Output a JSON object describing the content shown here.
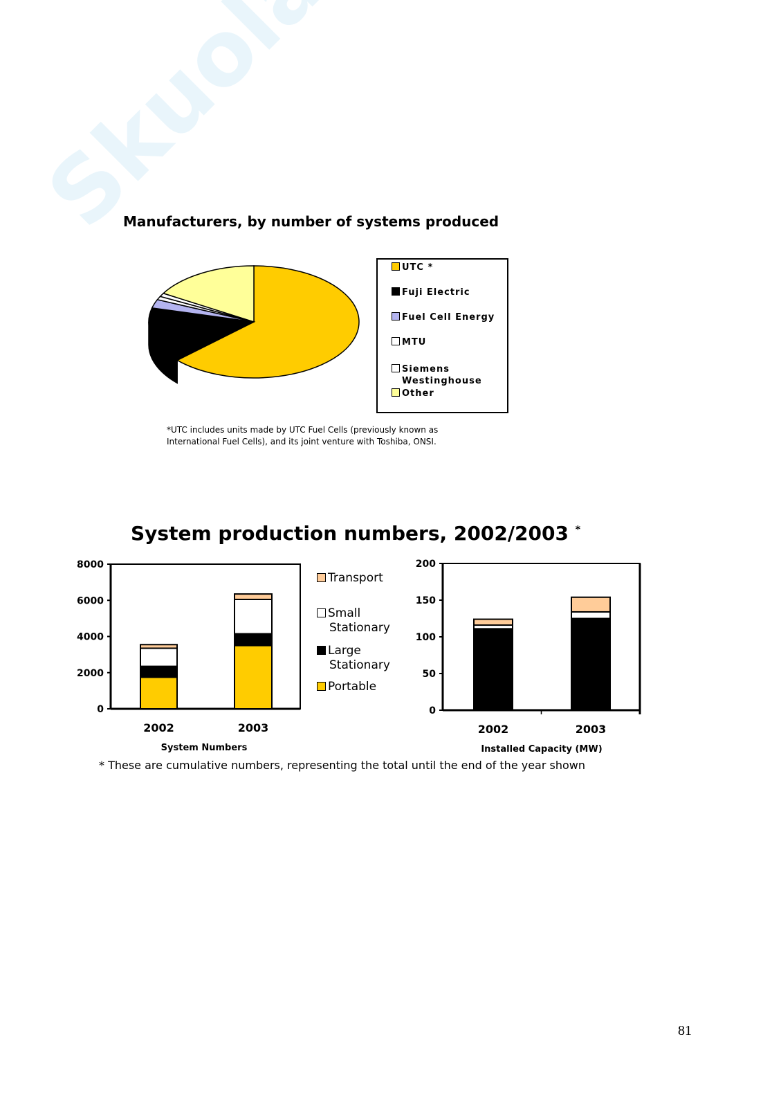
{
  "watermark": "Skuola.net — il paradiso dello studente",
  "colors": {
    "utc": "#FFCC00",
    "utc_side": "#806600",
    "fuji": "#000000",
    "fce": "#B4B4F0",
    "mtu": "#FFFFFF",
    "siemens": "#FFFFFF",
    "other": "#FFFF99",
    "portable": "#FFCC00",
    "large": "#000000",
    "small": "#FFFFFF",
    "transport": "#FFCC99"
  },
  "chart_data": [
    {
      "type": "pie",
      "title": "Manufacturers, by number of systems produced",
      "style": "3d",
      "legend_position": "right",
      "slices": [
        {
          "label": "UTC *",
          "value": 63,
          "color": "#FFCC00"
        },
        {
          "label": "Fuji Electric",
          "value": 16,
          "color": "#000000"
        },
        {
          "label": "Fuel Cell Energy",
          "value": 2.5,
          "color": "#B4B4F0"
        },
        {
          "label": "MTU",
          "value": 1,
          "color": "#FFFFFF"
        },
        {
          "label": "Siemens Westinghouse",
          "value": 1,
          "color": "#FFFFFF"
        },
        {
          "label": "Other",
          "value": 16.5,
          "color": "#FFFF99"
        }
      ],
      "footnote": [
        "*UTC includes units made by UTC Fuel Cells (previously known as",
        "International Fuel Cells), and its joint venture with Toshiba, ONSI."
      ]
    },
    {
      "type": "bar",
      "stacked": true,
      "title": "System production numbers, 2002/2003",
      "title_mark": "*",
      "xlabel": "System Numbers",
      "categories": [
        "2002",
        "2003"
      ],
      "ylim": [
        0,
        8000
      ],
      "yticks": [
        "0",
        "2000",
        "4000",
        "6000",
        "8000"
      ],
      "series": [
        {
          "name": "Portable",
          "values": [
            1750,
            3500
          ],
          "color": "#FFCC00"
        },
        {
          "name": "Large Stationary",
          "values": [
            600,
            650
          ],
          "color": "#000000"
        },
        {
          "name": "Small Stationary",
          "values": [
            1000,
            1900
          ],
          "color": "#FFFFFF"
        },
        {
          "name": "Transport",
          "values": [
            200,
            300
          ],
          "color": "#FFCC99"
        }
      ],
      "legend": [
        "Transport",
        "Small Stationary",
        "Large Stationary",
        "Portable"
      ]
    },
    {
      "type": "bar",
      "stacked": true,
      "xlabel": "Installed Capacity (MW)",
      "categories": [
        "2002",
        "2003"
      ],
      "ylim": [
        0,
        200
      ],
      "yticks": [
        "0",
        "50",
        "100",
        "150",
        "200"
      ],
      "series": [
        {
          "name": "Large Stationary",
          "values": [
            111,
            125
          ],
          "color": "#000000"
        },
        {
          "name": "Small Stationary",
          "values": [
            5,
            9
          ],
          "color": "#FFFFFF"
        },
        {
          "name": "Transport",
          "values": [
            8,
            20
          ],
          "color": "#FFCC99"
        }
      ]
    }
  ],
  "legend2": {
    "transport": "Transport",
    "small1": "Small",
    "small2": "Stationary",
    "large1": "Large",
    "large2": "Stationary",
    "portable": "Portable"
  },
  "pie_legend": {
    "utc": "UTC *",
    "fuji": "Fuji Electric",
    "fce": "Fuel Cell Energy",
    "mtu": "MTU",
    "siemens1": "Siemens",
    "siemens2": "Westinghouse",
    "other": "Other"
  },
  "footnote2": "* These are cumulative numbers, representing the total until the end of the year shown",
  "page_number": "81"
}
